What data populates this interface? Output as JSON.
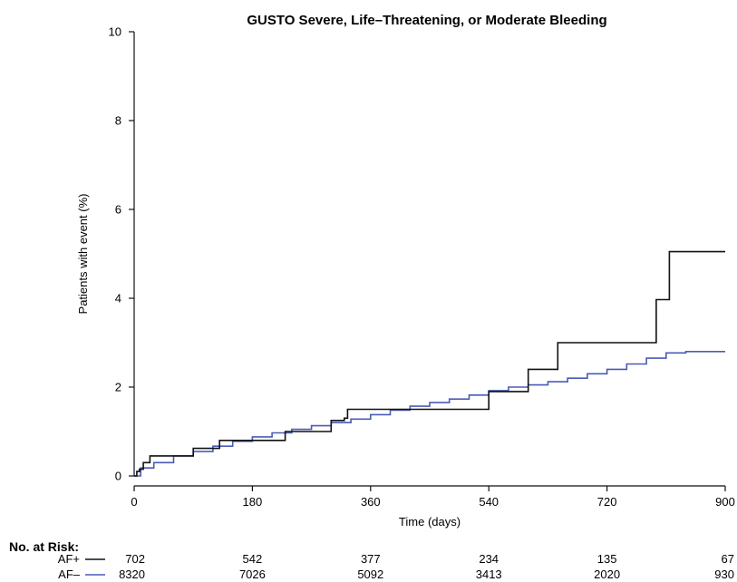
{
  "chart_data": {
    "type": "line",
    "title": "GUSTO Severe, Life–Threatening, or Moderate Bleeding",
    "xlabel": "Time (days)",
    "ylabel": "Patients with event (%)",
    "xlim": [
      0,
      900
    ],
    "ylim": [
      0,
      10
    ],
    "xticks": [
      "0",
      "180",
      "360",
      "540",
      "720",
      "900"
    ],
    "yticks": [
      "0",
      "2",
      "4",
      "6",
      "8",
      "10"
    ],
    "grid": false,
    "step": true,
    "series": [
      {
        "name": "AF+",
        "color": "#111111",
        "x": [
          0,
          4,
          8,
          14,
          24,
          90,
          130,
          230,
          300,
          320,
          325,
          520,
          540,
          600,
          645,
          795,
          815,
          900
        ],
        "y": [
          0,
          0.1,
          0.15,
          0.3,
          0.45,
          0.62,
          0.8,
          1.0,
          1.25,
          1.3,
          1.5,
          1.5,
          1.9,
          2.4,
          3.0,
          3.97,
          5.05,
          5.05
        ]
      },
      {
        "name": "AF–",
        "color": "#4a5bb5",
        "x": [
          0,
          10,
          30,
          60,
          90,
          120,
          150,
          180,
          210,
          240,
          270,
          300,
          330,
          360,
          390,
          420,
          450,
          480,
          510,
          540,
          570,
          600,
          630,
          660,
          690,
          720,
          750,
          780,
          810,
          840,
          870,
          900
        ],
        "y": [
          0,
          0.18,
          0.3,
          0.45,
          0.55,
          0.67,
          0.78,
          0.88,
          0.97,
          1.05,
          1.13,
          1.2,
          1.28,
          1.38,
          1.48,
          1.57,
          1.65,
          1.73,
          1.82,
          1.92,
          2.0,
          2.05,
          2.12,
          2.2,
          2.3,
          2.4,
          2.52,
          2.65,
          2.77,
          2.8,
          2.8,
          2.8
        ]
      }
    ],
    "risk_table": {
      "heading": "No. at Risk:",
      "times": [
        0,
        180,
        360,
        540,
        720,
        900
      ],
      "rows": [
        {
          "label": "AF+",
          "color": "#111111",
          "values": [
            "702",
            "542",
            "377",
            "234",
            "135",
            "67"
          ]
        },
        {
          "label": "AF–",
          "color": "#4a5bb5",
          "values": [
            "8320",
            "7026",
            "5092",
            "3413",
            "2020",
            "930"
          ]
        }
      ]
    }
  }
}
